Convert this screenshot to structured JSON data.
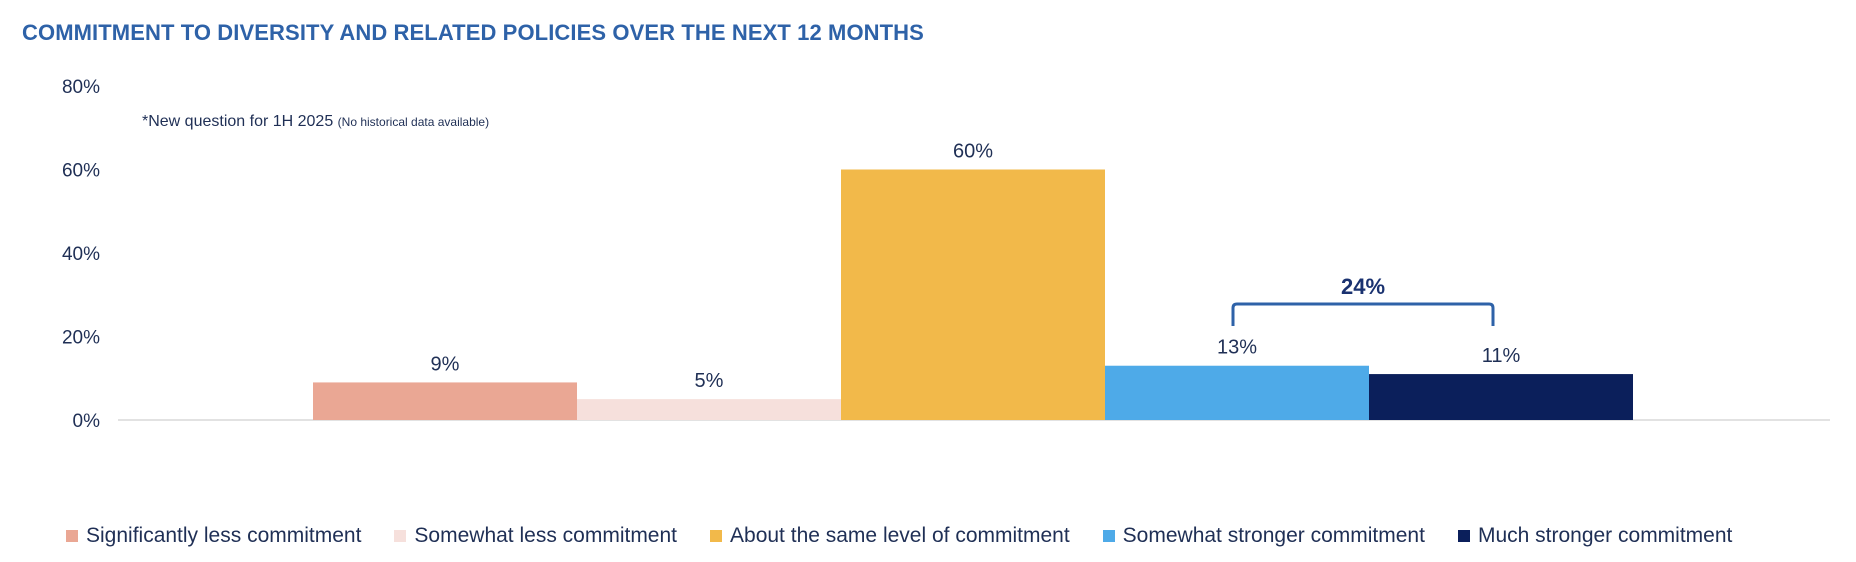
{
  "chart_data": {
    "type": "bar",
    "title": "COMMITMENT TO DIVERSITY AND RELATED POLICIES OVER THE NEXT 12 MONTHS",
    "annotation": {
      "main": "*New question for 1H 2025",
      "small": "(No historical data available)"
    },
    "ylim": [
      0,
      80
    ],
    "y_ticks": [
      0,
      20,
      40,
      60,
      80
    ],
    "y_tick_labels": [
      "0%",
      "20%",
      "40%",
      "60%",
      "80%"
    ],
    "grid": false,
    "legend_position": "bottom",
    "series": [
      {
        "name": "Significantly less commitment",
        "value": 9,
        "label": "9%",
        "color": "#eaa794"
      },
      {
        "name": "Somewhat less commitment",
        "value": 5,
        "label": "5%",
        "color": "#f6e0dc"
      },
      {
        "name": "About the same level of commitment",
        "value": 60,
        "label": "60%",
        "color": "#f2b94a"
      },
      {
        "name": "Somewhat stronger commitment",
        "value": 13,
        "label": "13%",
        "color": "#4eaae8"
      },
      {
        "name": "Much stronger commitment",
        "value": 11,
        "label": "11%",
        "color": "#0b1f5b"
      }
    ],
    "bracket": {
      "label": "24%",
      "spans_series": [
        "Somewhat stronger commitment",
        "Much stronger commitment"
      ],
      "color": "#2e62a8"
    }
  }
}
